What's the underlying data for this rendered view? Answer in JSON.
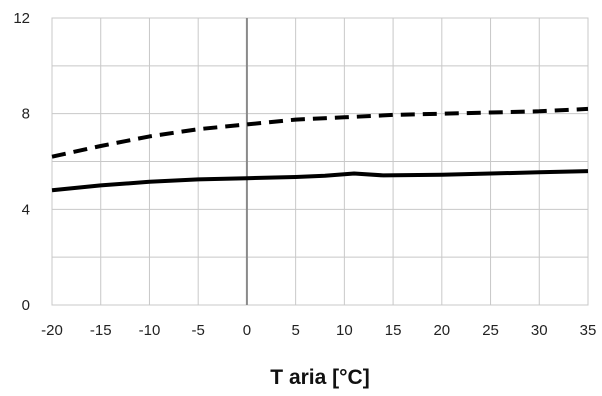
{
  "chart_data": {
    "type": "line",
    "title": "",
    "xlabel": "T aria [°C]",
    "ylabel": "",
    "xlim": [
      -20,
      35
    ],
    "ylim": [
      0,
      12
    ],
    "x_ticks": [
      -20,
      -15,
      -10,
      -5,
      0,
      5,
      10,
      15,
      20,
      25,
      30,
      35
    ],
    "y_ticks": [
      0,
      4,
      8,
      12
    ],
    "grid": true,
    "legend": "none",
    "series": [
      {
        "style": "dashed",
        "color": "#000000",
        "x": [
          -20,
          -15,
          -10,
          -5,
          0,
          5,
          10,
          15,
          20,
          25,
          30,
          35
        ],
        "y": [
          6.2,
          6.65,
          7.05,
          7.35,
          7.55,
          7.75,
          7.85,
          7.95,
          8.0,
          8.05,
          8.1,
          8.2
        ]
      },
      {
        "style": "solid",
        "color": "#000000",
        "x": [
          -20,
          -15,
          -10,
          -5,
          0,
          5,
          8,
          11,
          14,
          20,
          25,
          30,
          35
        ],
        "y": [
          4.8,
          5.0,
          5.15,
          5.25,
          5.3,
          5.35,
          5.4,
          5.5,
          5.42,
          5.45,
          5.5,
          5.55,
          5.6
        ]
      }
    ]
  }
}
